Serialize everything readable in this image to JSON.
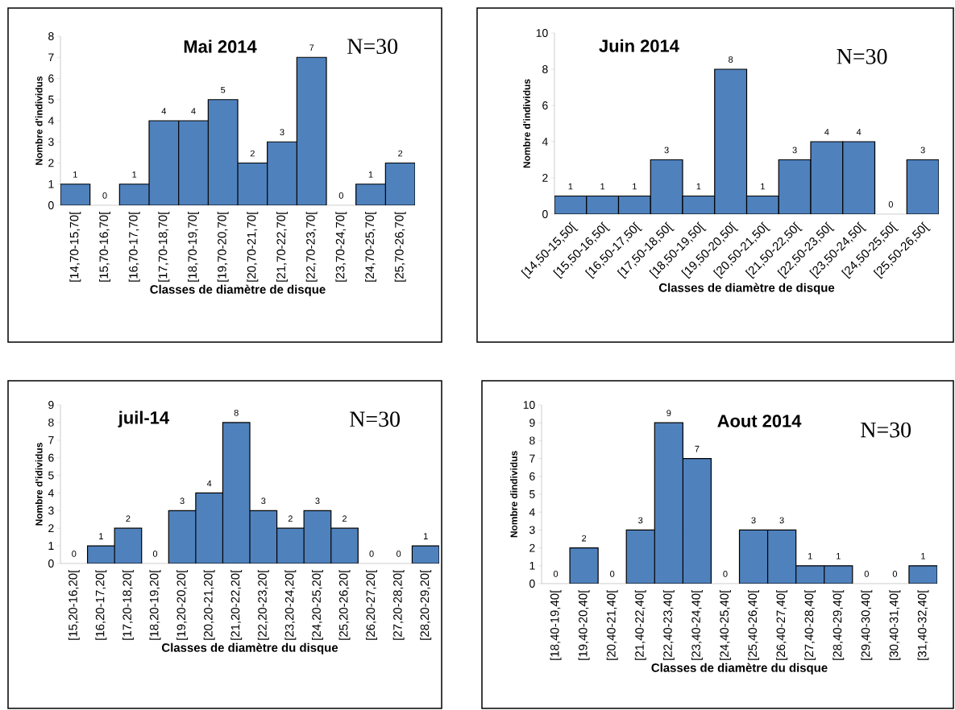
{
  "chart_data": [
    {
      "type": "bar",
      "title": "Mai 2014",
      "xlabel": "Classes de diamètre de disque",
      "ylabel": "Nombre d'individus",
      "annotations": [
        "N=30"
      ],
      "categories": [
        "[14,70-15,70[",
        "[15,70-16,70[",
        "[16,70-17,70[",
        "[17,70-18,70[",
        "[18,70-19,70[",
        "[19,70-20,70[",
        "[20,70-21,70[",
        "[21,70-22,70[",
        "[22,70-23,70[",
        "[23,70-24,70[",
        "[24,70-25,70[",
        "[25,70-26,70["
      ],
      "values": [
        1,
        0,
        1,
        4,
        4,
        5,
        2,
        3,
        7,
        0,
        1,
        2
      ],
      "color": "#4f81bd",
      "ylim": [
        0,
        8
      ],
      "yticks": [
        0,
        1,
        2,
        3,
        4,
        5,
        6,
        7,
        8
      ],
      "data_labels": true
    },
    {
      "type": "bar",
      "title": "Juin 2014",
      "xlabel": "Classes de diamètre de disque",
      "ylabel": "Nombre d'individus",
      "annotations": [
        "N=30"
      ],
      "categories": [
        "[14,50-15,50[",
        "[15,50-16,50[",
        "[16,50-17,50[",
        "[17,50-18,50[",
        "[18,50-19,50[",
        "[19,50-20,50[",
        "[20,50-21,50[",
        "[21,50-22,50[",
        "[22,50-23,50[",
        "[23,50-24,50[",
        "[24,50-25,50[",
        "[25,50-26,50["
      ],
      "values": [
        1,
        1,
        1,
        3,
        1,
        8,
        1,
        3,
        4,
        4,
        0,
        3
      ],
      "color": "#4f81bd",
      "ylim": [
        0,
        10
      ],
      "yticks": [
        0,
        2,
        4,
        6,
        8,
        10
      ],
      "data_labels": true
    },
    {
      "type": "bar",
      "title": "juil-14",
      "xlabel": "Classes de diamètre du disque",
      "ylabel": "Nombre d'idividus",
      "annotations": [
        "N=30"
      ],
      "categories": [
        "[15,20-16,20[",
        "[16,20-17,20[",
        "[17,20-18,20[",
        "[18,20-19,20[",
        "[19,20-20,20[",
        "[20,20-21,20[",
        "[21,20-22,20[",
        "[22,20-23,20[",
        "[23,20-24,20[",
        "[24,20-25,20[",
        "[25,20-26,20[",
        "[26,20-27,20[",
        "[27,20-28,20[",
        "[28,20-29,20["
      ],
      "values": [
        0,
        1,
        2,
        0,
        3,
        4,
        8,
        3,
        2,
        3,
        2,
        0,
        0,
        1
      ],
      "color": "#4f81bd",
      "ylim": [
        0,
        9
      ],
      "yticks": [
        0,
        1,
        2,
        3,
        4,
        5,
        6,
        7,
        8,
        9
      ],
      "data_labels": true
    },
    {
      "type": "bar",
      "title": "Aout 2014",
      "xlabel": "Classes de diamètre du disque",
      "ylabel": "Nombre dindividus",
      "annotations": [
        "N=30"
      ],
      "categories": [
        "[18,40-19,40[",
        "[19,40-20,40[",
        "[20,40-21,40[",
        "[21,40-22,40[",
        "[22,40-23,40[",
        "[23,40-24,40[",
        "[24,40-25,40[",
        "[25,40-26,40[",
        "[26,40-27,40[",
        "[27,40-28,40[",
        "[28,40-29,40[",
        "[29,40-30,40[",
        "[30,40-31,40[",
        "[31,40-32,40["
      ],
      "values": [
        0,
        2,
        0,
        3,
        9,
        7,
        0,
        3,
        3,
        1,
        1,
        0,
        0,
        1
      ],
      "color": "#4f81bd",
      "ylim": [
        0,
        10
      ],
      "yticks": [
        0,
        1,
        2,
        3,
        4,
        5,
        6,
        7,
        8,
        9,
        10
      ],
      "data_labels": true
    }
  ]
}
